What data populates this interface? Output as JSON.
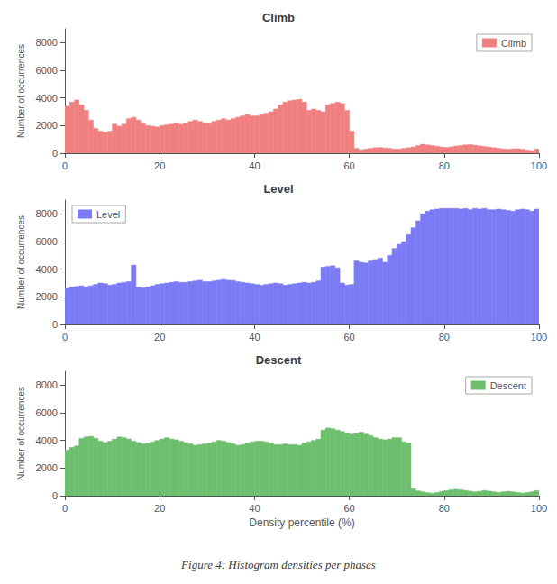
{
  "caption": "Figure 4: Histogram densities per phases",
  "chart_data": [
    {
      "type": "histogram",
      "title": "Climb",
      "ylabel": "Number of occurrences",
      "bins": [
        0,
        1,
        2,
        3,
        4,
        5,
        6,
        7,
        8,
        9,
        10,
        11,
        12,
        13,
        14,
        15,
        16,
        17,
        18,
        19,
        20,
        21,
        22,
        23,
        24,
        25,
        26,
        27,
        28,
        29,
        30,
        31,
        32,
        33,
        34,
        35,
        36,
        37,
        38,
        39,
        40,
        41,
        42,
        43,
        44,
        45,
        46,
        47,
        48,
        49,
        50,
        51,
        52,
        53,
        54,
        55,
        56,
        57,
        58,
        59,
        60,
        61,
        62,
        63,
        64,
        65,
        66,
        67,
        68,
        69,
        70,
        71,
        72,
        73,
        74,
        75,
        76,
        77,
        78,
        79,
        80,
        81,
        82,
        83,
        84,
        85,
        86,
        87,
        88,
        89,
        90,
        91,
        92,
        93,
        94,
        95,
        96,
        97,
        98,
        99,
        100
      ],
      "series": [
        {
          "name": "Climb",
          "color": "#F08080",
          "values": [
            3400,
            3700,
            3850,
            3500,
            3100,
            2400,
            1800,
            1600,
            1500,
            1600,
            2100,
            1950,
            2100,
            2500,
            2600,
            2400,
            2200,
            2000,
            1950,
            1900,
            2000,
            2050,
            2100,
            2200,
            2100,
            2200,
            2300,
            2400,
            2300,
            2200,
            2200,
            2300,
            2400,
            2500,
            2400,
            2500,
            2600,
            2700,
            2800,
            2700,
            2700,
            2800,
            2900,
            3000,
            3200,
            3500,
            3700,
            3800,
            3850,
            3900,
            3700,
            3100,
            3200,
            3100,
            3000,
            3500,
            3600,
            3700,
            3600,
            3100,
            1600,
            350,
            250,
            300,
            350,
            400,
            420,
            380,
            350,
            300,
            300,
            350,
            400,
            450,
            550,
            650,
            600,
            550,
            500,
            450,
            420,
            460,
            520,
            560,
            600,
            620,
            580,
            530,
            480,
            440,
            400,
            360,
            310,
            290,
            320,
            330,
            290,
            240,
            190,
            300
          ]
        }
      ],
      "xlim": [
        0,
        100
      ],
      "xticks": [
        0,
        20,
        40,
        60,
        80,
        100
      ],
      "ylim": [
        0,
        9000
      ],
      "yticks": [
        0,
        2000,
        4000,
        6000,
        8000
      ],
      "grid": false,
      "legend": "upper right"
    },
    {
      "type": "histogram",
      "title": "Level",
      "ylabel": "Number of occurrences",
      "bins": [
        0,
        1,
        2,
        3,
        4,
        5,
        6,
        7,
        8,
        9,
        10,
        11,
        12,
        13,
        14,
        15,
        16,
        17,
        18,
        19,
        20,
        21,
        22,
        23,
        24,
        25,
        26,
        27,
        28,
        29,
        30,
        31,
        32,
        33,
        34,
        35,
        36,
        37,
        38,
        39,
        40,
        41,
        42,
        43,
        44,
        45,
        46,
        47,
        48,
        49,
        50,
        51,
        52,
        53,
        54,
        55,
        56,
        57,
        58,
        59,
        60,
        61,
        62,
        63,
        64,
        65,
        66,
        67,
        68,
        69,
        70,
        71,
        72,
        73,
        74,
        75,
        76,
        77,
        78,
        79,
        80,
        81,
        82,
        83,
        84,
        85,
        86,
        87,
        88,
        89,
        90,
        91,
        92,
        93,
        94,
        95,
        96,
        97,
        98,
        99,
        100
      ],
      "series": [
        {
          "name": "Level",
          "color": "#7B7BF5",
          "values": [
            2600,
            2700,
            2750,
            2800,
            2720,
            2800,
            2900,
            3000,
            2950,
            2850,
            2900,
            3000,
            3050,
            3100,
            4300,
            2700,
            2650,
            2700,
            2800,
            2900,
            2950,
            3000,
            3050,
            3100,
            3050,
            3050,
            3100,
            3150,
            3200,
            3100,
            3100,
            3150,
            3200,
            3250,
            3200,
            3180,
            3100,
            3050,
            3000,
            2950,
            2900,
            2850,
            2900,
            2950,
            3000,
            2950,
            2850,
            2900,
            2950,
            3000,
            3050,
            3000,
            3050,
            3150,
            4150,
            4200,
            4250,
            4100,
            3000,
            2850,
            2900,
            4600,
            4500,
            4450,
            4600,
            4700,
            4800,
            4500,
            5000,
            5500,
            5800,
            6000,
            6500,
            7000,
            7500,
            8000,
            8200,
            8300,
            8350,
            8400,
            8400,
            8400,
            8400,
            8350,
            8400,
            8300,
            8400,
            8350,
            8400,
            8300,
            8300,
            8350,
            8300,
            8250,
            8200,
            8300,
            8350,
            8300,
            8200,
            8350
          ]
        }
      ],
      "xlim": [
        0,
        100
      ],
      "xticks": [
        0,
        20,
        40,
        60,
        80,
        100
      ],
      "ylim": [
        0,
        9000
      ],
      "yticks": [
        0,
        2000,
        4000,
        6000,
        8000
      ],
      "grid": false,
      "legend": "upper left"
    },
    {
      "type": "histogram",
      "title": "Descent",
      "ylabel": "Number of occurrences",
      "xlabel": "Density percentile (%)",
      "bins": [
        0,
        1,
        2,
        3,
        4,
        5,
        6,
        7,
        8,
        9,
        10,
        11,
        12,
        13,
        14,
        15,
        16,
        17,
        18,
        19,
        20,
        21,
        22,
        23,
        24,
        25,
        26,
        27,
        28,
        29,
        30,
        31,
        32,
        33,
        34,
        35,
        36,
        37,
        38,
        39,
        40,
        41,
        42,
        43,
        44,
        45,
        46,
        47,
        48,
        49,
        50,
        51,
        52,
        53,
        54,
        55,
        56,
        57,
        58,
        59,
        60,
        61,
        62,
        63,
        64,
        65,
        66,
        67,
        68,
        69,
        70,
        71,
        72,
        73,
        74,
        75,
        76,
        77,
        78,
        79,
        80,
        81,
        82,
        83,
        84,
        85,
        86,
        87,
        88,
        89,
        90,
        91,
        92,
        93,
        94,
        95,
        96,
        97,
        98,
        99,
        100
      ],
      "series": [
        {
          "name": "Descent",
          "color": "#6DBF6D",
          "values": [
            3300,
            3500,
            3600,
            4150,
            4250,
            4300,
            4150,
            3950,
            3850,
            3950,
            4100,
            4250,
            4200,
            4100,
            3950,
            3850,
            3750,
            3800,
            3900,
            4000,
            4100,
            4200,
            4100,
            4050,
            3950,
            3850,
            3750,
            3650,
            3700,
            3750,
            3800,
            3900,
            4000,
            3950,
            3850,
            3750,
            3650,
            3700,
            3800,
            3900,
            3950,
            3950,
            3900,
            3800,
            3700,
            3700,
            3750,
            3700,
            3700,
            3650,
            3800,
            3900,
            4000,
            4100,
            4750,
            4900,
            4850,
            4750,
            4650,
            4550,
            4450,
            4500,
            4600,
            4450,
            4350,
            4200,
            4100,
            4050,
            4100,
            4200,
            4200,
            3900,
            3800,
            500,
            350,
            280,
            220,
            180,
            230,
            300,
            370,
            420,
            460,
            430,
            380,
            330,
            280,
            320,
            380,
            330,
            280,
            230,
            280,
            320,
            280,
            230,
            190,
            230,
            280,
            370
          ]
        }
      ],
      "xlim": [
        0,
        100
      ],
      "xticks": [
        0,
        20,
        40,
        60,
        80,
        100
      ],
      "ylim": [
        0,
        9000
      ],
      "yticks": [
        0,
        2000,
        4000,
        6000,
        8000
      ],
      "grid": false,
      "legend": "upper right"
    }
  ]
}
